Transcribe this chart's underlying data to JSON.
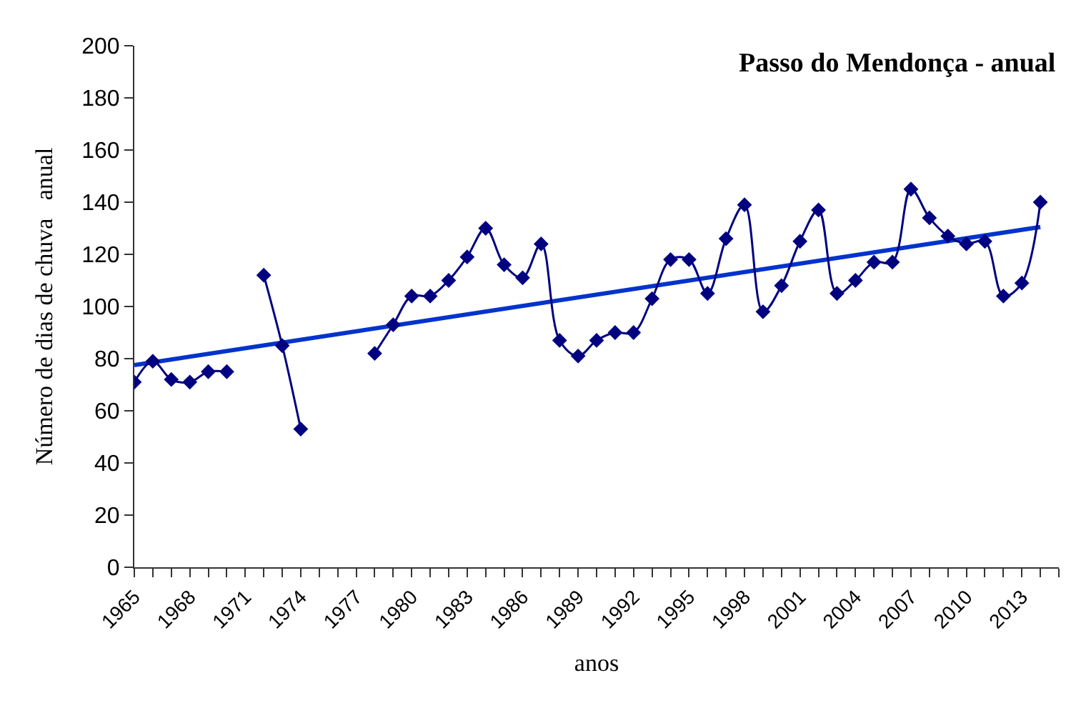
{
  "chart_data": {
    "type": "line",
    "title": "Passo do Mendonça - anual",
    "xlabel": "anos",
    "ylabel": "Número de dias de chuva   anual",
    "x": [
      1965,
      1966,
      1967,
      1968,
      1969,
      1970,
      1971,
      1972,
      1973,
      1974,
      1975,
      1976,
      1977,
      1978,
      1979,
      1980,
      1981,
      1982,
      1983,
      1984,
      1985,
      1986,
      1987,
      1988,
      1989,
      1990,
      1991,
      1992,
      1993,
      1994,
      1995,
      1996,
      1997,
      1998,
      1999,
      2000,
      2001,
      2002,
      2003,
      2004,
      2005,
      2006,
      2007,
      2008,
      2009,
      2010,
      2011,
      2012,
      2013,
      2014
    ],
    "series": [
      {
        "color": "#000080",
        "marker": "diamond",
        "values": [
          71,
          79,
          72,
          71,
          75,
          75,
          null,
          112,
          85,
          53,
          null,
          null,
          null,
          82,
          93,
          104,
          104,
          110,
          119,
          130,
          116,
          111,
          124,
          87,
          81,
          87,
          90,
          90,
          103,
          118,
          118,
          105,
          126,
          139,
          98,
          108,
          125,
          137,
          105,
          110,
          117,
          117,
          145,
          134,
          127,
          124,
          125,
          104,
          109,
          140
        ]
      },
      {
        "color": "#0033cc",
        "marker": "none",
        "x": [
          1965,
          2014
        ],
        "values": [
          77.5,
          130.5
        ]
      }
    ],
    "xlim": [
      1965,
      2015
    ],
    "ylim": [
      0,
      200
    ],
    "xticks": [
      1965,
      {
        "value": 1966,
        "label": null
      },
      {
        "value": 1967,
        "label": null
      },
      1968,
      {
        "value": 1969,
        "label": null
      },
      {
        "value": 1970,
        "label": null
      },
      1971,
      {
        "value": 1972,
        "label": null
      },
      {
        "value": 1973,
        "label": null
      },
      1974,
      {
        "value": 1975,
        "label": null
      },
      {
        "value": 1976,
        "label": null
      },
      1977,
      {
        "value": 1978,
        "label": null
      },
      {
        "value": 1979,
        "label": null
      },
      1980,
      {
        "value": 1981,
        "label": null
      },
      {
        "value": 1982,
        "label": null
      },
      1983,
      {
        "value": 1984,
        "label": null
      },
      {
        "value": 1985,
        "label": null
      },
      1986,
      {
        "value": 1987,
        "label": null
      },
      {
        "value": 1988,
        "label": null
      },
      1989,
      {
        "value": 1990,
        "label": null
      },
      {
        "value": 1991,
        "label": null
      },
      1992,
      {
        "value": 1993,
        "label": null
      },
      {
        "value": 1994,
        "label": null
      },
      1995,
      {
        "value": 1996,
        "label": null
      },
      {
        "value": 1997,
        "label": null
      },
      1998,
      {
        "value": 1999,
        "label": null
      },
      {
        "value": 2000,
        "label": null
      },
      2001,
      {
        "value": 2002,
        "label": null
      },
      {
        "value": 2003,
        "label": null
      },
      2004,
      {
        "value": 2005,
        "label": null
      },
      {
        "value": 2006,
        "label": null
      },
      2007,
      {
        "value": 2008,
        "label": null
      },
      {
        "value": 2009,
        "label": null
      },
      2010,
      {
        "value": 2011,
        "label": null
      },
      {
        "value": 2012,
        "label": null
      },
      2013,
      {
        "value": 2014,
        "label": null
      },
      {
        "value": 2015,
        "label": null
      }
    ],
    "yticks": [
      0,
      20,
      40,
      60,
      80,
      100,
      120,
      140,
      160,
      180,
      200
    ]
  }
}
